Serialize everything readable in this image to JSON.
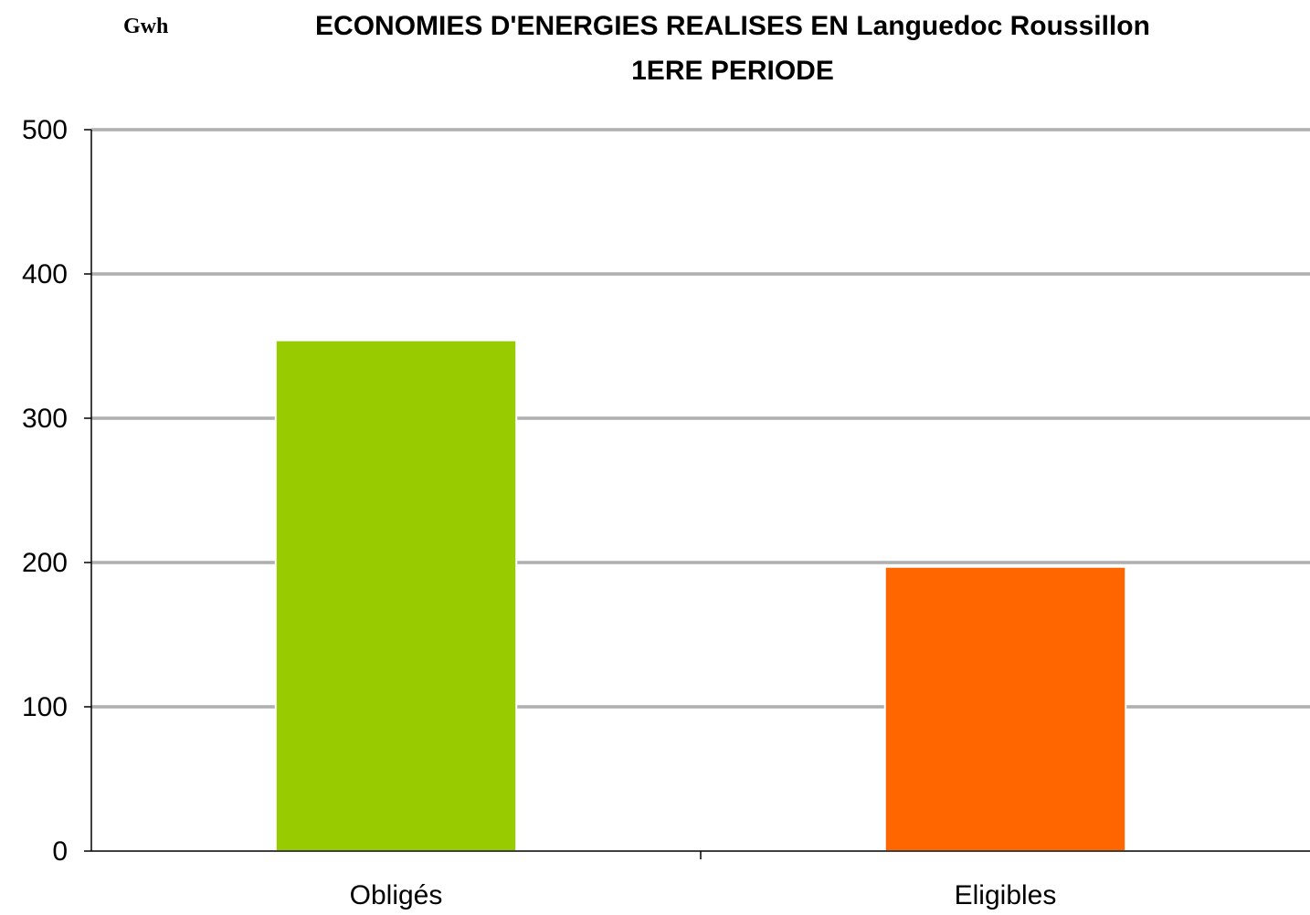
{
  "chart_data": {
    "type": "bar",
    "title": "ECONOMIES D'ENERGIES REALISES EN Languedoc Roussillon",
    "subtitle": "1ERE PERIODE",
    "ylabel": "Gwh",
    "categories": [
      "Obligés",
      "Eligibles"
    ],
    "values": [
      354,
      197
    ],
    "bar_colors": [
      "#99CC00",
      "#FF6600"
    ],
    "ylim": [
      0,
      500
    ],
    "yticks": [
      "0",
      "100",
      "200",
      "300",
      "400",
      "500"
    ],
    "grid": true,
    "legend": "none"
  }
}
